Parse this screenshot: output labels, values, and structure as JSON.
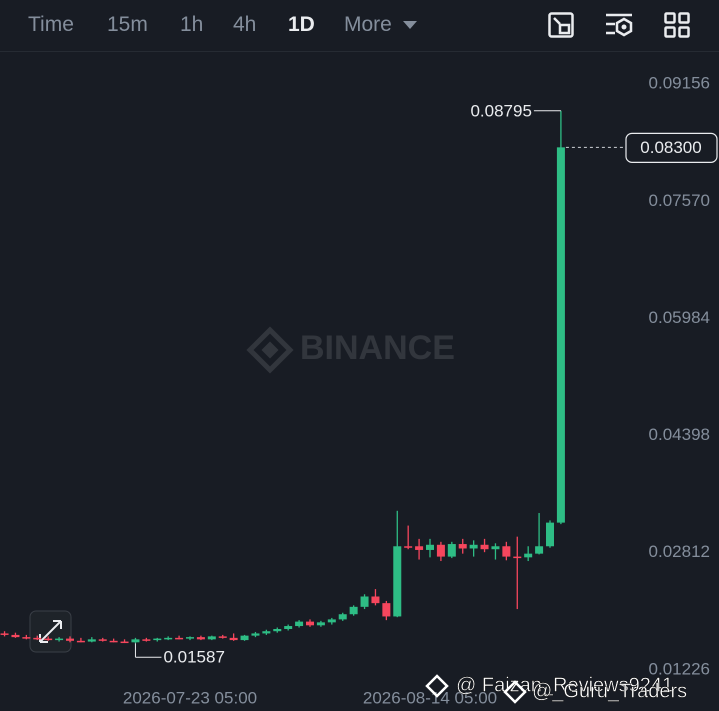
{
  "toolbar": {
    "tabs": [
      "Time",
      "15m",
      "1h",
      "4h",
      "1D",
      "More"
    ],
    "active_index": 4
  },
  "watermark": "BINANCE",
  "overlay_texts": [
    "@ Faizan_Reviews9241",
    "@_Guru_Traders"
  ],
  "chart_data": {
    "type": "candlestick",
    "categories": [
      null,
      null,
      null,
      null,
      null,
      null,
      null,
      null,
      null,
      null,
      null,
      null,
      null,
      null,
      null,
      null,
      null,
      "2026-07-23 05:00",
      null,
      null,
      null,
      null,
      null,
      null,
      null,
      null,
      null,
      null,
      null,
      null,
      null,
      null,
      null,
      null,
      null,
      null,
      null,
      null,
      null,
      "2026-08-14 05:00",
      null,
      null,
      null,
      null,
      null,
      null,
      null,
      null,
      null,
      null,
      null,
      null
    ],
    "open": [
      0.0172,
      0.017,
      0.0167,
      0.0166,
      0.0165,
      0.0164,
      0.0165,
      0.0162,
      0.0161,
      0.0164,
      0.0162,
      0.0161,
      0.016,
      0.0164,
      0.0163,
      0.0165,
      0.0166,
      0.0165,
      0.0167,
      0.0164,
      0.0168,
      0.0166,
      0.0163,
      0.0169,
      0.0172,
      0.0175,
      0.0178,
      0.0182,
      0.0188,
      0.0183,
      0.0187,
      0.0191,
      0.0198,
      0.0208,
      0.0222,
      0.0213,
      0.0195,
      0.029,
      0.029,
      0.0285,
      0.0292,
      0.0276,
      0.0293,
      0.0287,
      0.0292,
      0.0286,
      0.029,
      0.0276,
      0.0275,
      0.028,
      0.029,
      0.0322
    ],
    "high": [
      0.0175,
      0.0173,
      0.017,
      0.0169,
      0.0168,
      0.0167,
      0.0168,
      0.0166,
      0.0167,
      0.0166,
      0.0165,
      0.0164,
      0.0166,
      0.0166,
      0.0166,
      0.0168,
      0.0169,
      0.0168,
      0.0169,
      0.0169,
      0.017,
      0.0172,
      0.017,
      0.0174,
      0.0177,
      0.018,
      0.0184,
      0.019,
      0.0191,
      0.0189,
      0.0193,
      0.02,
      0.021,
      0.0225,
      0.0232,
      0.0216,
      0.0338,
      0.0318,
      0.03,
      0.03,
      0.0296,
      0.0296,
      0.03,
      0.0298,
      0.03,
      0.0294,
      0.0296,
      0.0303,
      0.029,
      0.0335,
      0.0325,
      0.08795
    ],
    "low": [
      0.0168,
      0.0166,
      0.0164,
      0.0163,
      0.0162,
      0.0161,
      0.016,
      0.016,
      0.016,
      0.0161,
      0.016,
      0.0159,
      0.01587,
      0.0161,
      0.0161,
      0.0163,
      0.0164,
      0.0163,
      0.0163,
      0.0163,
      0.0165,
      0.0162,
      0.0162,
      0.0167,
      0.017,
      0.0173,
      0.0176,
      0.018,
      0.0181,
      0.0181,
      0.0184,
      0.0189,
      0.0196,
      0.0205,
      0.021,
      0.019,
      0.0194,
      0.0286,
      0.0272,
      0.0275,
      0.027,
      0.0274,
      0.028,
      0.0276,
      0.0282,
      0.0272,
      0.0271,
      0.0205,
      0.027,
      0.0279,
      0.0288,
      0.032
    ],
    "close": [
      0.017,
      0.0167,
      0.0166,
      0.0165,
      0.0164,
      0.0165,
      0.0162,
      0.0161,
      0.0164,
      0.0162,
      0.0161,
      0.016,
      0.0164,
      0.0163,
      0.0165,
      0.0166,
      0.0165,
      0.0167,
      0.0164,
      0.0168,
      0.0166,
      0.0163,
      0.0169,
      0.0172,
      0.0175,
      0.0178,
      0.0182,
      0.0188,
      0.0183,
      0.0187,
      0.0191,
      0.0198,
      0.0208,
      0.0222,
      0.0213,
      0.0195,
      0.029,
      0.0289,
      0.0285,
      0.0292,
      0.0276,
      0.0293,
      0.0287,
      0.0292,
      0.0286,
      0.029,
      0.0276,
      0.0275,
      0.028,
      0.029,
      0.0322,
      0.083
    ],
    "up_color": "#2ebd85",
    "down_color": "#f6465d",
    "ylim": [
      0.0067,
      0.0955
    ],
    "yticks": [
      0.01226,
      0.02812,
      0.04398,
      0.05984,
      {
        "value": 0.0757,
        "label": "0.07570"
      },
      0.09156
    ],
    "grid": false,
    "last_price": {
      "value": 0.083,
      "label": "0.08300"
    },
    "max_label": 0.08795,
    "min_label": 0.01587
  }
}
